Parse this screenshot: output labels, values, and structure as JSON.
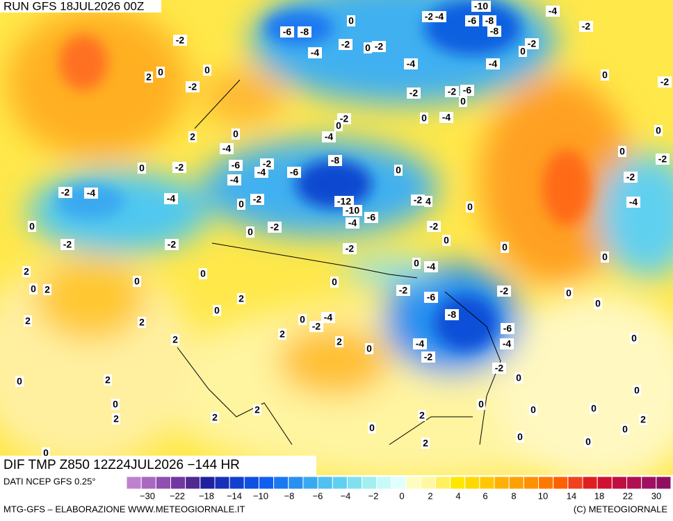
{
  "header": {
    "run": "RUN GFS 18JUL2026 00Z",
    "title": "DIF TMP Z850 12Z24JUL2026 −144 HR"
  },
  "footer": {
    "source": "DATI NCEP GFS 0.25°",
    "credits": "MTG-GFS – ELABORAZIONE WWW.METEOGIORNALE.IT",
    "copyright": "(C) METEOGIORNALE"
  },
  "colorbar": {
    "colors": [
      "#c080d0",
      "#a868c0",
      "#9050b0",
      "#7038a0",
      "#502890",
      "#2020a0",
      "#1830b8",
      "#1040d0",
      "#1050e0",
      "#1060f0",
      "#1a78f0",
      "#2890f0",
      "#3aa8f0",
      "#50c0f0",
      "#60d0f0",
      "#80e0f0",
      "#a0f0f0",
      "#c8fafa",
      "#e0ffff",
      "#fffcc0",
      "#fff8a0",
      "#fff060",
      "#ffe800",
      "#ffd800",
      "#ffc800",
      "#ffb000",
      "#ffa000",
      "#ff9000",
      "#ff7800",
      "#ff6000",
      "#f04020",
      "#e02020",
      "#d01030",
      "#c01040",
      "#b01050",
      "#a01060",
      "#901060"
    ],
    "labels": [
      "−30",
      "−22",
      "−18",
      "−14",
      "−10",
      "−8",
      "−6",
      "−4",
      "−2",
      "0",
      "2",
      "4",
      "6",
      "8",
      "10",
      "14",
      "18",
      "22",
      "30"
    ]
  },
  "contour_labels": [
    "-6",
    "-8",
    "0",
    "-10",
    "-4",
    "-2",
    "-4",
    "-6",
    "-8",
    "-8",
    "-2",
    "-2",
    "-2",
    "0",
    "-2",
    "-4",
    "0",
    "-2",
    "0",
    "2",
    "0",
    "-2",
    "-4",
    "-4",
    "0",
    "-2",
    "-2",
    "-2",
    "-6",
    "0",
    "-2",
    "0",
    "-4",
    "0",
    "0",
    "-4",
    "0",
    "2",
    "0",
    "-2",
    "-4",
    "-8",
    "-6",
    "-2",
    "-4",
    "-6",
    "-2",
    "0",
    "0",
    "-2",
    "-4",
    "-2",
    "-4",
    "-4",
    "-2",
    "0",
    "-12",
    "-2",
    "4",
    "-10",
    "-4",
    "0",
    "-6",
    "-4",
    "0",
    "-2",
    "-2",
    "0",
    "0",
    "-2",
    "-2",
    "0",
    "-2",
    "0",
    "0",
    "-4",
    "2",
    "0",
    "0",
    "0",
    "0",
    "2",
    "-2",
    "-2",
    "0",
    "-6",
    "2",
    "0",
    "-8",
    "0",
    "2",
    "2",
    "0",
    "-4",
    "-2",
    "-6",
    "2",
    "0",
    "2",
    "2",
    "-4",
    "-4",
    "0",
    "-2",
    "-2",
    "0",
    "0",
    "2",
    "0",
    "0",
    "0",
    "2",
    "0",
    "2",
    "2",
    "2",
    "0",
    "2",
    "0",
    "0",
    "0",
    "0",
    "2",
    "0"
  ]
}
